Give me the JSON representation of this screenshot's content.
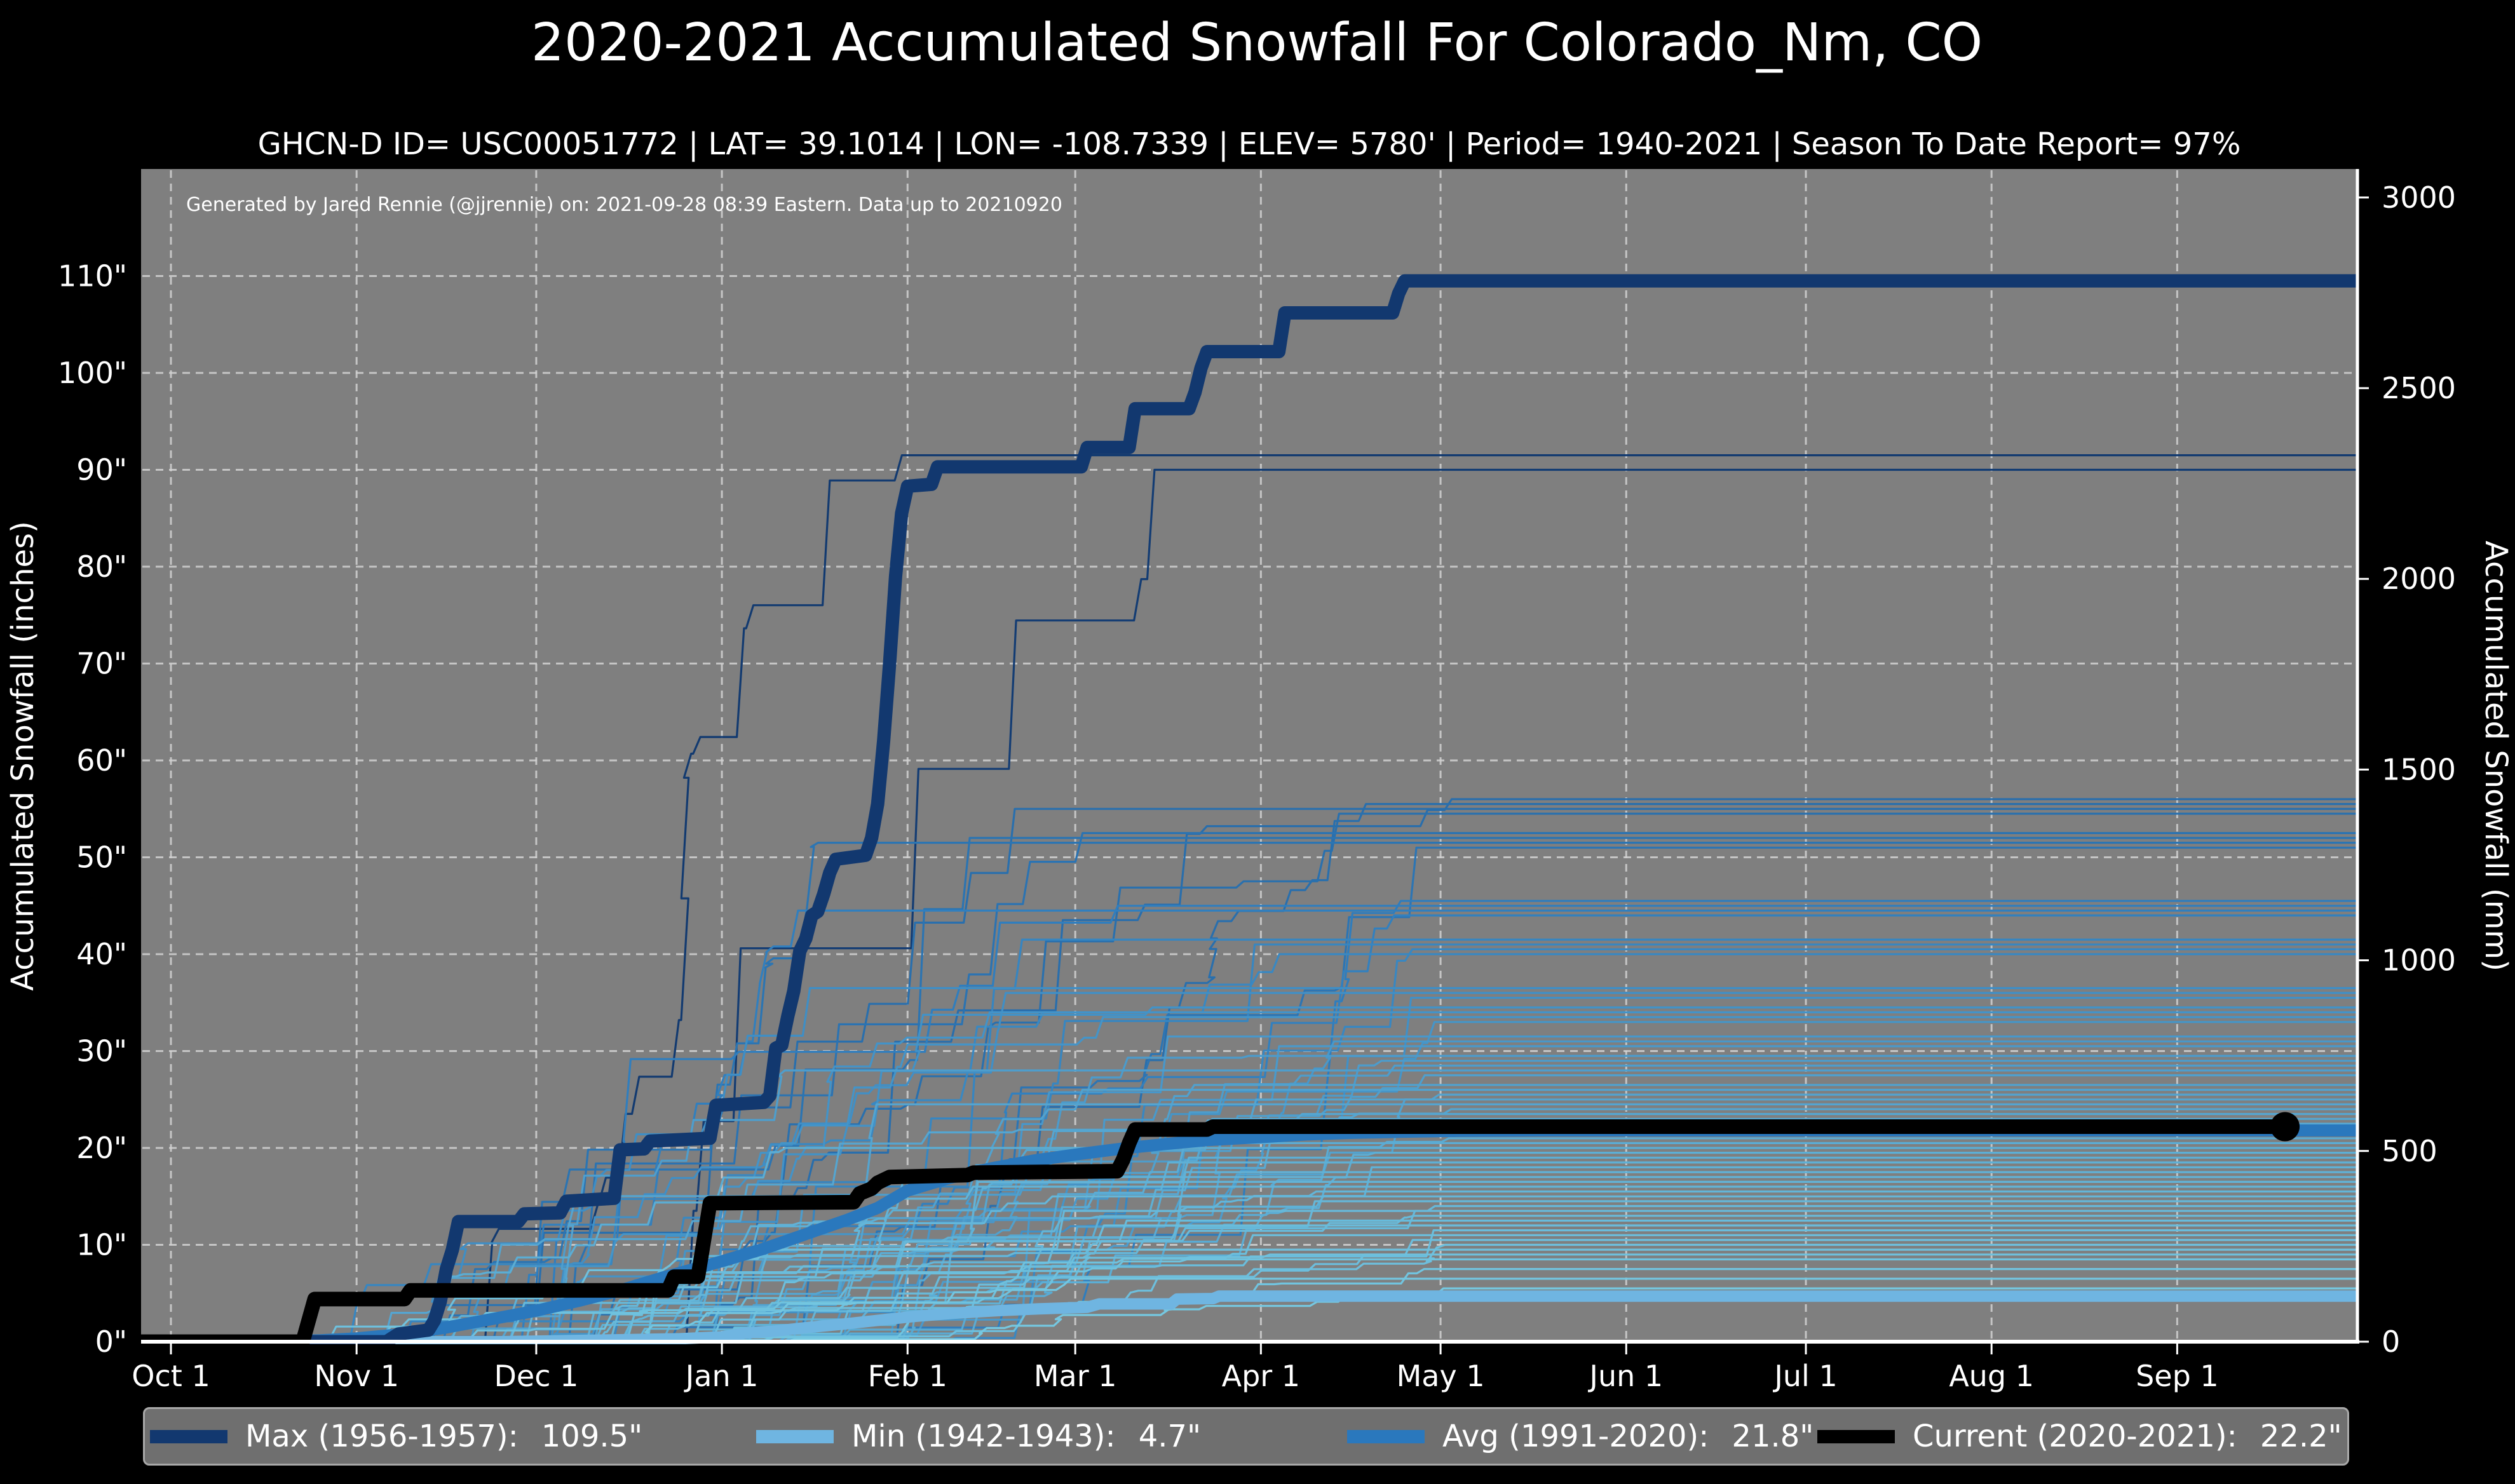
{
  "title": "2020-2021 Accumulated Snowfall For Colorado_Nm, CO",
  "subtitle": "GHCN-D ID= USC00051772 | LAT= 39.1014 | LON= -108.7339 | ELEV= 5780' | Period= 1940-2021 | Season To Date Report= 97%",
  "annotation": "Generated by Jared Rennie (@jjrennie) on: 2021-09-28 08:39 Eastern. Data up to 20210920",
  "colors": {
    "figure_background": "#000000",
    "plot_background": "#7f7f7f",
    "gridline": "#d2d2d2",
    "spine": "#ffffff",
    "text": "#ffffff",
    "max_line": "#12386f",
    "min_line": "#6fb5e1",
    "avg_line": "#2a78bd",
    "current_line": "#000000",
    "bg_ramp_low": "#7ed2e6",
    "bg_ramp_mid": "#2f7dbd",
    "bg_ramp_high": "#123a70"
  },
  "legend": {
    "items": [
      {
        "label": "Max (1956-1957):",
        "value": "109.5\""
      },
      {
        "label": "Min (1942-1943):",
        "value": "4.7\""
      },
      {
        "label": "Avg (1991-2020):",
        "value": "21.8\""
      },
      {
        "label": "Current (2020-2021):",
        "value": "22.2\""
      }
    ]
  },
  "chart_data": {
    "type": "line",
    "title": "2020-2021 Accumulated Snowfall For Colorado_Nm, CO",
    "xlabel": "",
    "ylabel_left": "Accumulated Snowfall (inches)",
    "ylabel_right": "Accumulated Snowfall (mm)",
    "grid": true,
    "legend_position": "bottom",
    "xlim_days_from_oct1": [
      -5,
      365.5
    ],
    "ylim_inches": [
      0,
      121
    ],
    "x_ticks": [
      {
        "label": "Oct 1",
        "day": 0
      },
      {
        "label": "Nov 1",
        "day": 31
      },
      {
        "label": "Dec 1",
        "day": 61
      },
      {
        "label": "Jan 1",
        "day": 92
      },
      {
        "label": "Feb 1",
        "day": 123
      },
      {
        "label": "Mar 1",
        "day": 151
      },
      {
        "label": "Apr 1",
        "day": 182
      },
      {
        "label": "May 1",
        "day": 212
      },
      {
        "label": "Jun 1",
        "day": 243
      },
      {
        "label": "Jul 1",
        "day": 273
      },
      {
        "label": "Aug 1",
        "day": 304
      },
      {
        "label": "Sep 1",
        "day": 335
      }
    ],
    "y_ticks_left": [
      {
        "label": "0\"",
        "inches": 0
      },
      {
        "label": "10\"",
        "inches": 10
      },
      {
        "label": "20\"",
        "inches": 20
      },
      {
        "label": "30\"",
        "inches": 30
      },
      {
        "label": "40\"",
        "inches": 40
      },
      {
        "label": "50\"",
        "inches": 50
      },
      {
        "label": "60\"",
        "inches": 60
      },
      {
        "label": "70\"",
        "inches": 70
      },
      {
        "label": "80\"",
        "inches": 80
      },
      {
        "label": "90\"",
        "inches": 90
      },
      {
        "label": "100\"",
        "inches": 100
      },
      {
        "label": "110\"",
        "inches": 110
      }
    ],
    "y_ticks_right_mm": [
      {
        "label": "0",
        "mm": 0
      },
      {
        "label": "500",
        "mm": 500
      },
      {
        "label": "1000",
        "mm": 1000
      },
      {
        "label": "1500",
        "mm": 1500
      },
      {
        "label": "2000",
        "mm": 2000
      },
      {
        "label": "2500",
        "mm": 2500
      },
      {
        "label": "3000",
        "mm": 3000
      }
    ],
    "series": [
      {
        "name": "Max (1956-1957)",
        "final_inches": 109.5,
        "color": "#12386f",
        "width": 21,
        "z": 3,
        "points": [
          [
            -5,
            0
          ],
          [
            20,
            0
          ],
          [
            36,
            0
          ],
          [
            38,
            0.8
          ],
          [
            43,
            1.2
          ],
          [
            44,
            2.2
          ],
          [
            45,
            4.2
          ],
          [
            46,
            7.5
          ],
          [
            47,
            9.5
          ],
          [
            48,
            12.4
          ],
          [
            58,
            12.4
          ],
          [
            59,
            13.2
          ],
          [
            65,
            13.3
          ],
          [
            66,
            14.5
          ],
          [
            74,
            14.8
          ],
          [
            75,
            19.8
          ],
          [
            79,
            19.9
          ],
          [
            80,
            20.7
          ],
          [
            90,
            21
          ],
          [
            91,
            24.4
          ],
          [
            99,
            24.7
          ],
          [
            100,
            25.4
          ],
          [
            101,
            30.3
          ],
          [
            102,
            30.6
          ],
          [
            103,
            33.6
          ],
          [
            104,
            36.2
          ],
          [
            105,
            40.3
          ],
          [
            106,
            41.6
          ],
          [
            107,
            44
          ],
          [
            108,
            44.4
          ],
          [
            109,
            46.2
          ],
          [
            110,
            48.4
          ],
          [
            111,
            49.8
          ],
          [
            116,
            50.2
          ],
          [
            117,
            52
          ],
          [
            118,
            55.5
          ],
          [
            119,
            62
          ],
          [
            120,
            70
          ],
          [
            121,
            79
          ],
          [
            122,
            85.5
          ],
          [
            123,
            88.3
          ],
          [
            127,
            88.5
          ],
          [
            128,
            90.3
          ],
          [
            152,
            90.3
          ],
          [
            153,
            92.3
          ],
          [
            160,
            92.3
          ],
          [
            161,
            96.3
          ],
          [
            170,
            96.3
          ],
          [
            171,
            98
          ],
          [
            172,
            100.5
          ],
          [
            173,
            102.2
          ],
          [
            185,
            102.2
          ],
          [
            186,
            106.2
          ],
          [
            204,
            106.2
          ],
          [
            205,
            108.2
          ],
          [
            206,
            109.5
          ],
          [
            365.5,
            109.5
          ]
        ]
      },
      {
        "name": "Min (1942-1943)",
        "final_inches": 4.7,
        "color": "#6fb5e1",
        "width": 18,
        "z": 1,
        "points": [
          [
            -5,
            0
          ],
          [
            55,
            0
          ],
          [
            70,
            0.15
          ],
          [
            85,
            0.3
          ],
          [
            92,
            0.5
          ],
          [
            96,
            0.9
          ],
          [
            101,
            1.1
          ],
          [
            106,
            1.45
          ],
          [
            112,
            1.8
          ],
          [
            118,
            2.2
          ],
          [
            124,
            2.6
          ],
          [
            131,
            2.95
          ],
          [
            138,
            3.2
          ],
          [
            145,
            3.4
          ],
          [
            153,
            3.55
          ],
          [
            155,
            3.9
          ],
          [
            167,
            3.9
          ],
          [
            168,
            4.4
          ],
          [
            174,
            4.45
          ],
          [
            175,
            4.7
          ],
          [
            365.5,
            4.7
          ]
        ]
      },
      {
        "name": "Avg (1991-2020)",
        "final_inches": 21.8,
        "color": "#2a78bd",
        "width": 19,
        "z": 2,
        "points": [
          [
            -5,
            0
          ],
          [
            15,
            0.02
          ],
          [
            25,
            0.15
          ],
          [
            31,
            0.35
          ],
          [
            38,
            0.75
          ],
          [
            45,
            1.35
          ],
          [
            52,
            2.15
          ],
          [
            61,
            3.2
          ],
          [
            68,
            4.2
          ],
          [
            75,
            5.3
          ],
          [
            82,
            6.6
          ],
          [
            92,
            8.3
          ],
          [
            99,
            9.6
          ],
          [
            106,
            11.1
          ],
          [
            113,
            12.6
          ],
          [
            118,
            13.8
          ],
          [
            123,
            15.6
          ],
          [
            130,
            16.9
          ],
          [
            137,
            17.9
          ],
          [
            144,
            18.7
          ],
          [
            152,
            19.4
          ],
          [
            159,
            19.95
          ],
          [
            166,
            20.4
          ],
          [
            173,
            20.8
          ],
          [
            183,
            21.15
          ],
          [
            190,
            21.4
          ],
          [
            197,
            21.55
          ],
          [
            205,
            21.65
          ],
          [
            215,
            21.75
          ],
          [
            230,
            21.8
          ],
          [
            365.5,
            21.8
          ]
        ]
      },
      {
        "name": "Current (2020-2021)",
        "final_inches": 22.2,
        "color": "#000000",
        "width": 23,
        "z": 4,
        "end_dot": true,
        "end_dot_radius": 23,
        "points": [
          [
            -5,
            0
          ],
          [
            22,
            0
          ],
          [
            23,
            2.2
          ],
          [
            24,
            4.4
          ],
          [
            39,
            4.4
          ],
          [
            40,
            5.3
          ],
          [
            83,
            5.3
          ],
          [
            84,
            6.7
          ],
          [
            88,
            6.7
          ],
          [
            89,
            10.5
          ],
          [
            90,
            14.3
          ],
          [
            114,
            14.4
          ],
          [
            115,
            15.3
          ],
          [
            117,
            15.8
          ],
          [
            118,
            16.4
          ],
          [
            120,
            17.0
          ],
          [
            133,
            17.2
          ],
          [
            134,
            17.45
          ],
          [
            158,
            17.6
          ],
          [
            159,
            18.8
          ],
          [
            160,
            20.5
          ],
          [
            161,
            21.9
          ],
          [
            173,
            21.9
          ],
          [
            174,
            22.2
          ],
          [
            353,
            22.2
          ]
        ]
      }
    ],
    "background_years": {
      "description": "unlabeled historical seasons 1940-2021, thin step lines colored dark(navy)=snowy to light(cyan)=dry",
      "seed": 1337,
      "line_width": 3.2,
      "final_inches": [
        91.5,
        90,
        56,
        55.5,
        55,
        54.5,
        52.5,
        52,
        51.5,
        51,
        45.5,
        45,
        44.5,
        44,
        41.5,
        41,
        40.5,
        40,
        36.5,
        36,
        35.5,
        34.5,
        34,
        33.5,
        33,
        31.5,
        31,
        30.5,
        29.5,
        29,
        28.5,
        28,
        27.5,
        26.5,
        26,
        25.5,
        25,
        24.5,
        24,
        23.5,
        23,
        22.5,
        21.5,
        21,
        20.5,
        20,
        19.5,
        19,
        18.5,
        18,
        17.5,
        17,
        16.5,
        16,
        15.5,
        15,
        14.5,
        14,
        13.5,
        13,
        12.5,
        12,
        11.5,
        11,
        10.5,
        10,
        9.5,
        9,
        8.5,
        7.5,
        6.5,
        5.5
      ]
    }
  }
}
